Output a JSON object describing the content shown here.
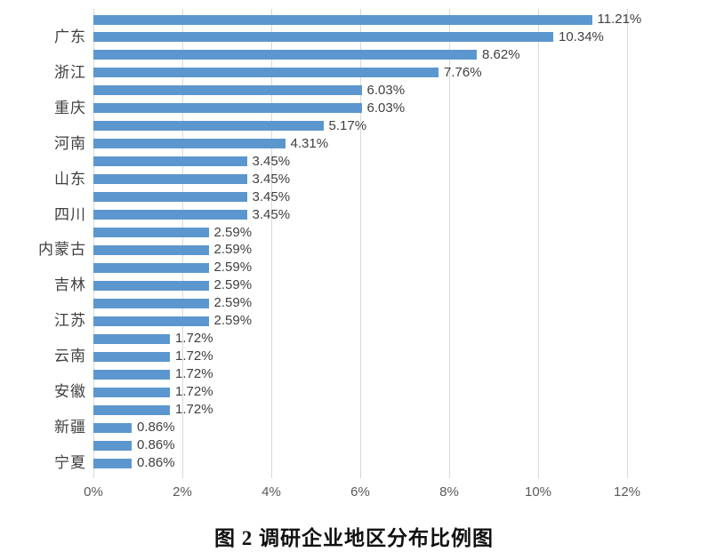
{
  "page": {
    "background": "#ffffff"
  },
  "chart_data": {
    "type": "bar",
    "orientation": "horizontal",
    "title": "图 2  调研企业地区分布比例图",
    "xlabel": "",
    "ylabel": "",
    "xlim": [
      0,
      12
    ],
    "grid": true,
    "legend": false,
    "bar_color": "#5b97ce",
    "gridline_color": "#d9d9d9",
    "axis_tick_color": "#595959",
    "value_label_color": "#3f3f3f",
    "category_label_color": "#404040",
    "x_ticks": [
      {
        "label": "0%",
        "value": 0
      },
      {
        "label": "2%",
        "value": 2
      },
      {
        "label": "4%",
        "value": 4
      },
      {
        "label": "6%",
        "value": 6
      },
      {
        "label": "8%",
        "value": 8
      },
      {
        "label": "10%",
        "value": 10
      },
      {
        "label": "12%",
        "value": 12
      }
    ],
    "bars": [
      {
        "category": "",
        "value": 11.21,
        "label": "11.21%"
      },
      {
        "category": "广东",
        "value": 10.34,
        "label": "10.34%"
      },
      {
        "category": "",
        "value": 8.62,
        "label": "8.62%"
      },
      {
        "category": "浙江",
        "value": 7.76,
        "label": "7.76%"
      },
      {
        "category": "",
        "value": 6.03,
        "label": "6.03%"
      },
      {
        "category": "重庆",
        "value": 6.03,
        "label": "6.03%"
      },
      {
        "category": "",
        "value": 5.17,
        "label": "5.17%"
      },
      {
        "category": "河南",
        "value": 4.31,
        "label": "4.31%"
      },
      {
        "category": "",
        "value": 3.45,
        "label": "3.45%"
      },
      {
        "category": "山东",
        "value": 3.45,
        "label": "3.45%"
      },
      {
        "category": "",
        "value": 3.45,
        "label": "3.45%"
      },
      {
        "category": "四川",
        "value": 3.45,
        "label": "3.45%"
      },
      {
        "category": "",
        "value": 2.59,
        "label": "2.59%"
      },
      {
        "category": "内蒙古",
        "value": 2.59,
        "label": "2.59%"
      },
      {
        "category": "",
        "value": 2.59,
        "label": "2.59%"
      },
      {
        "category": "吉林",
        "value": 2.59,
        "label": "2.59%"
      },
      {
        "category": "",
        "value": 2.59,
        "label": "2.59%"
      },
      {
        "category": "江苏",
        "value": 2.59,
        "label": "2.59%"
      },
      {
        "category": "",
        "value": 1.72,
        "label": "1.72%"
      },
      {
        "category": "云南",
        "value": 1.72,
        "label": "1.72%"
      },
      {
        "category": "",
        "value": 1.72,
        "label": "1.72%"
      },
      {
        "category": "安徽",
        "value": 1.72,
        "label": "1.72%"
      },
      {
        "category": "",
        "value": 1.72,
        "label": "1.72%"
      },
      {
        "category": "新疆",
        "value": 0.86,
        "label": "0.86%"
      },
      {
        "category": "",
        "value": 0.86,
        "label": "0.86%"
      },
      {
        "category": "宁夏",
        "value": 0.86,
        "label": "0.86%"
      }
    ]
  }
}
